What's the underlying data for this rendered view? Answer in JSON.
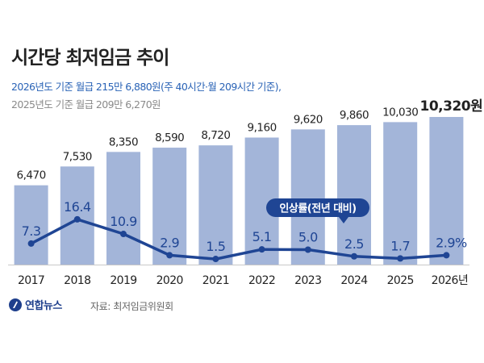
{
  "title": "시간당 최저임금 추이",
  "subtitle_2026": "2026년도 기준 월급 215만 6,880원(주 40시간·월 209시간 기준),",
  "subtitle_2025": "2025년도 기준 월급 209만 6,270원",
  "source": "자료: 최저임금위원회",
  "logo": "연합뉴스",
  "colors": {
    "bar": "#a3b5d9",
    "line": "#1f4594",
    "rate_text": "#1f4594",
    "wage_text": "#222222",
    "callout_bg": "#1f4594",
    "callout_text": "#ffffff"
  },
  "chart_data": {
    "type": "bar",
    "categories": [
      "2017",
      "2018",
      "2019",
      "2020",
      "2021",
      "2022",
      "2023",
      "2024",
      "2025",
      "2026년"
    ],
    "series": [
      {
        "values": [
          6470,
          7530,
          8350,
          8590,
          8720,
          9160,
          9620,
          9860,
          10030,
          10320
        ],
        "value_labels": [
          "6,470",
          "7,530",
          "8,350",
          "8,590",
          "8,720",
          "9,160",
          "9,620",
          "9,860",
          "10,030",
          "10,320원"
        ]
      },
      {
        "name": "인상률(전년 대비)",
        "type": "line",
        "values": [
          7.3,
          16.4,
          10.9,
          2.9,
          1.5,
          5.1,
          5.0,
          2.5,
          1.7,
          2.9
        ],
        "value_labels": [
          "7.3",
          "16.4",
          "10.9",
          "2.9",
          "1.5",
          "5.1",
          "5.0",
          "2.5",
          "1.7",
          "2.9%"
        ]
      }
    ],
    "callout": "인상률(전년 대비)",
    "grid": false
  }
}
